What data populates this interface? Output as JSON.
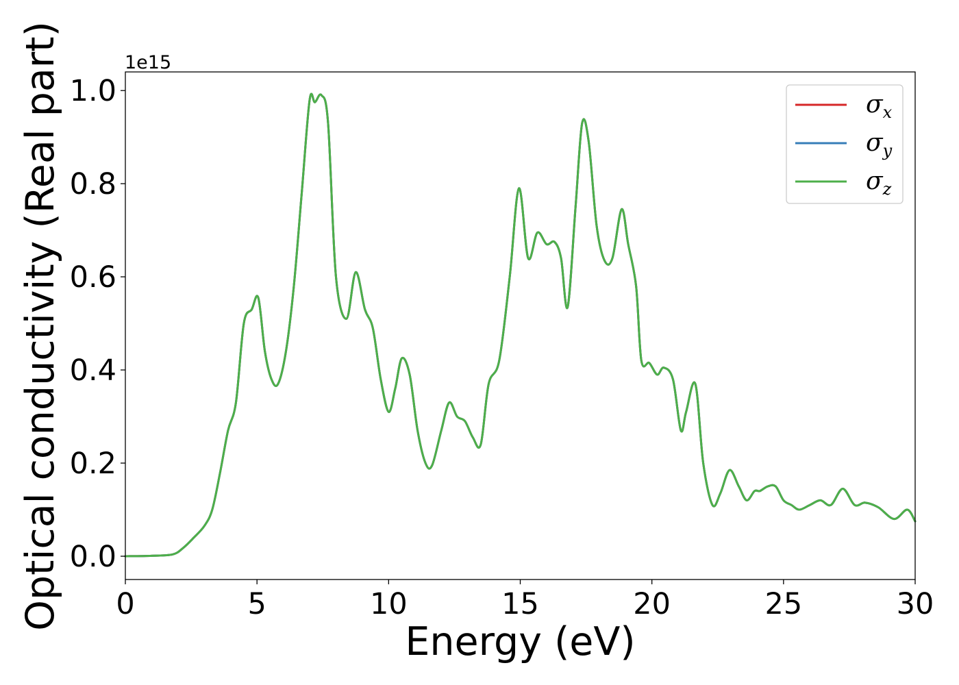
{
  "chart_data": {
    "type": "line",
    "title": "",
    "xlabel": "Energy (eV)",
    "ylabel": "Optical conductivity (Real part)",
    "y_offset_label": "1e15",
    "y_scale": 1000000000000000.0,
    "xlim": [
      0,
      30
    ],
    "ylim": [
      -0.05,
      1.04
    ],
    "x_ticks": [
      0,
      5,
      10,
      15,
      20,
      25,
      30
    ],
    "x_tick_labels": [
      "0",
      "5",
      "10",
      "15",
      "20",
      "25",
      "30"
    ],
    "y_ticks": [
      0.0,
      0.2,
      0.4,
      0.6,
      0.8,
      1.0
    ],
    "y_tick_labels": [
      "0.0",
      "0.2",
      "0.4",
      "0.6",
      "0.8",
      "1.0"
    ],
    "grid": false,
    "legend": {
      "position": "top-right",
      "entries": [
        {
          "symbol": "σ",
          "subscript": "x",
          "color": "#d62728"
        },
        {
          "symbol": "σ",
          "subscript": "y",
          "color": "#377eb8"
        },
        {
          "symbol": "σ",
          "subscript": "z",
          "color": "#4daf4a"
        }
      ]
    },
    "x": [
      0,
      1,
      1.8,
      2.2,
      2.6,
      3.0,
      3.3,
      3.6,
      3.9,
      4.2,
      4.5,
      4.8,
      5.05,
      5.3,
      5.55,
      5.8,
      6.1,
      6.4,
      6.7,
      7.0,
      7.2,
      7.45,
      7.7,
      8.0,
      8.4,
      8.75,
      9.1,
      9.4,
      9.7,
      10.0,
      10.25,
      10.5,
      10.8,
      11.1,
      11.4,
      11.65,
      12.0,
      12.3,
      12.6,
      12.9,
      13.2,
      13.5,
      13.8,
      14.2,
      14.6,
      14.95,
      15.3,
      15.65,
      16.0,
      16.3,
      16.55,
      16.8,
      17.1,
      17.35,
      17.6,
      17.9,
      18.2,
      18.5,
      18.85,
      19.1,
      19.4,
      19.6,
      19.9,
      20.2,
      20.45,
      20.8,
      21.1,
      21.3,
      21.65,
      21.95,
      22.3,
      22.6,
      22.95,
      23.3,
      23.6,
      23.9,
      24.1,
      24.4,
      24.7,
      25.0,
      25.3,
      25.6,
      26.0,
      26.4,
      26.8,
      27.25,
      27.7,
      28.1,
      28.6,
      29.2,
      29.7,
      30.0
    ],
    "series": [
      {
        "color": "#d62728",
        "values": [
          0,
          0.001,
          0.004,
          0.018,
          0.04,
          0.065,
          0.1,
          0.18,
          0.27,
          0.33,
          0.5,
          0.53,
          0.555,
          0.44,
          0.38,
          0.37,
          0.44,
          0.58,
          0.78,
          0.98,
          0.975,
          0.99,
          0.93,
          0.6,
          0.51,
          0.61,
          0.53,
          0.49,
          0.38,
          0.31,
          0.36,
          0.425,
          0.39,
          0.27,
          0.2,
          0.195,
          0.27,
          0.33,
          0.3,
          0.29,
          0.255,
          0.24,
          0.37,
          0.42,
          0.6,
          0.79,
          0.64,
          0.695,
          0.67,
          0.675,
          0.64,
          0.535,
          0.75,
          0.93,
          0.89,
          0.71,
          0.635,
          0.64,
          0.745,
          0.67,
          0.58,
          0.42,
          0.415,
          0.39,
          0.405,
          0.38,
          0.27,
          0.31,
          0.37,
          0.2,
          0.11,
          0.135,
          0.185,
          0.15,
          0.12,
          0.14,
          0.14,
          0.15,
          0.15,
          0.12,
          0.11,
          0.1,
          0.11,
          0.12,
          0.11,
          0.145,
          0.11,
          0.115,
          0.105,
          0.08,
          0.1,
          0.075
        ]
      },
      {
        "color": "#377eb8",
        "values": [
          0,
          0.001,
          0.004,
          0.018,
          0.04,
          0.065,
          0.1,
          0.18,
          0.27,
          0.33,
          0.5,
          0.53,
          0.555,
          0.44,
          0.38,
          0.37,
          0.44,
          0.58,
          0.78,
          0.98,
          0.975,
          0.99,
          0.93,
          0.6,
          0.51,
          0.61,
          0.53,
          0.49,
          0.38,
          0.31,
          0.36,
          0.425,
          0.39,
          0.27,
          0.2,
          0.195,
          0.27,
          0.33,
          0.3,
          0.29,
          0.255,
          0.24,
          0.37,
          0.42,
          0.6,
          0.79,
          0.64,
          0.695,
          0.67,
          0.675,
          0.64,
          0.535,
          0.75,
          0.93,
          0.89,
          0.71,
          0.635,
          0.64,
          0.745,
          0.67,
          0.58,
          0.42,
          0.415,
          0.39,
          0.405,
          0.38,
          0.27,
          0.31,
          0.37,
          0.2,
          0.11,
          0.135,
          0.185,
          0.15,
          0.12,
          0.14,
          0.14,
          0.15,
          0.15,
          0.12,
          0.11,
          0.1,
          0.11,
          0.12,
          0.11,
          0.145,
          0.11,
          0.115,
          0.105,
          0.08,
          0.1,
          0.075
        ]
      },
      {
        "color": "#4daf4a",
        "values": [
          0,
          0.001,
          0.004,
          0.018,
          0.04,
          0.065,
          0.1,
          0.18,
          0.27,
          0.33,
          0.5,
          0.53,
          0.555,
          0.44,
          0.38,
          0.37,
          0.44,
          0.58,
          0.78,
          0.98,
          0.975,
          0.99,
          0.93,
          0.6,
          0.51,
          0.61,
          0.53,
          0.49,
          0.38,
          0.31,
          0.36,
          0.425,
          0.39,
          0.27,
          0.2,
          0.195,
          0.27,
          0.33,
          0.3,
          0.29,
          0.255,
          0.24,
          0.37,
          0.42,
          0.6,
          0.79,
          0.64,
          0.695,
          0.67,
          0.675,
          0.64,
          0.535,
          0.75,
          0.93,
          0.89,
          0.71,
          0.635,
          0.64,
          0.745,
          0.67,
          0.58,
          0.42,
          0.415,
          0.39,
          0.405,
          0.38,
          0.27,
          0.31,
          0.37,
          0.2,
          0.11,
          0.135,
          0.185,
          0.15,
          0.12,
          0.14,
          0.14,
          0.15,
          0.15,
          0.12,
          0.11,
          0.1,
          0.11,
          0.12,
          0.11,
          0.145,
          0.11,
          0.115,
          0.105,
          0.08,
          0.1,
          0.075
        ]
      }
    ]
  }
}
